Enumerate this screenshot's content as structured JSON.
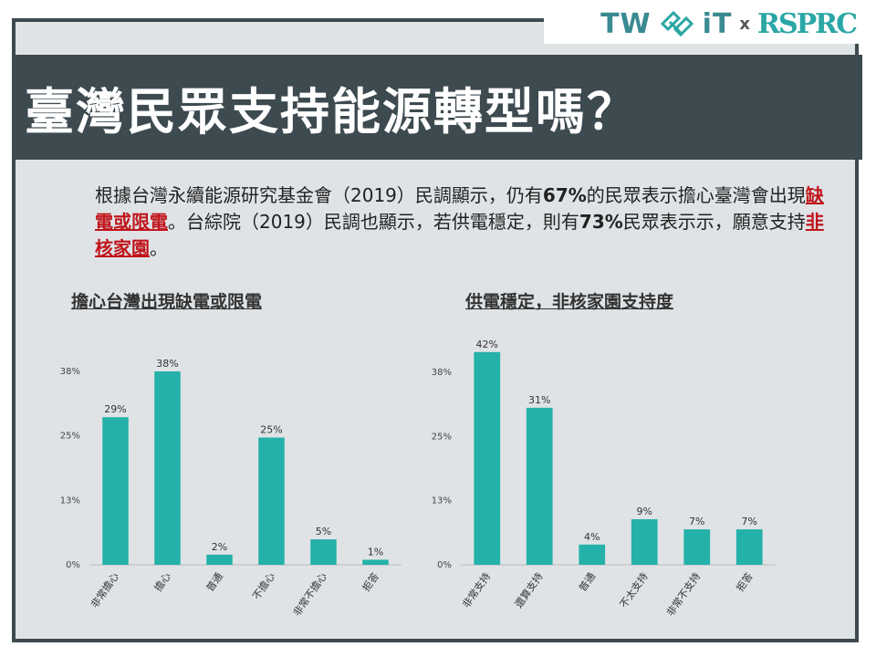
{
  "brand": {
    "logo_left": "TW",
    "logo_mid": "iT",
    "logo_x": "x",
    "logo_right": "RSPRC"
  },
  "title": "臺灣民眾支持能源轉型嗎？",
  "paragraph": {
    "part1": "根據台灣永續能源研究基金會（2019）民調顯示，仍有",
    "pct1": "67%",
    "part2": "的民眾表示擔心臺灣會出現",
    "hl1": "缺電或限電",
    "part3": "。台綜院（2019）民調也顯示，若供電穩定，則有",
    "pct2": "73%",
    "part4": "民眾表示示，願意支持",
    "hl2": "非核家園",
    "part5": "。"
  },
  "colors": {
    "bar": "#24b1a9",
    "title_bg": "#3d4a50",
    "panel_bg": "#dfe3e6",
    "highlight": "#c0141b"
  },
  "chart_data": [
    {
      "type": "bar",
      "title": "擔心台灣出現缺電或限電",
      "categories": [
        "非常擔心",
        "擔心",
        "普通",
        "不擔心",
        "非常不擔心",
        "拒答"
      ],
      "values": [
        29,
        38,
        2,
        25,
        5,
        1
      ],
      "value_labels": [
        "29%",
        "38%",
        "2%",
        "25%",
        "5%",
        "1%"
      ],
      "yticks": [
        "0%",
        "13%",
        "25%",
        "38%"
      ],
      "ytick_values": [
        0,
        12.67,
        25.33,
        38
      ],
      "ylim": [
        0,
        38
      ],
      "grid": false
    },
    {
      "type": "bar",
      "title": "供電穩定，非核家園支持度",
      "categories": [
        "非常支持",
        "還算支持",
        "普通",
        "不太支持",
        "非常不支持",
        "拒答"
      ],
      "values": [
        42,
        31,
        4,
        9,
        7,
        7
      ],
      "value_labels": [
        "42%",
        "31%",
        "4%",
        "9%",
        "7%",
        "7%"
      ],
      "yticks": [
        "0%",
        "13%",
        "25%",
        "38%"
      ],
      "ytick_values": [
        0,
        12.67,
        25.33,
        38
      ],
      "ylim": [
        0,
        38
      ],
      "grid": false
    }
  ]
}
